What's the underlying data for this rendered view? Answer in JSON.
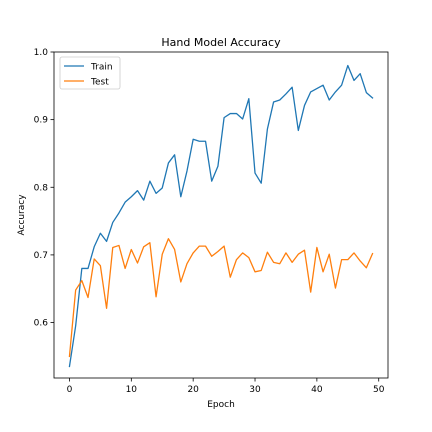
{
  "chart_data": {
    "type": "line",
    "title": "Hand Model Accuracy",
    "xlabel": "Epoch",
    "ylabel": "Accuracy",
    "xlim": [
      -2.5,
      51.5
    ],
    "ylim": [
      0.518,
      1.0
    ],
    "xticks": [
      0,
      10,
      20,
      30,
      40,
      50
    ],
    "yticks": [
      0.6,
      0.7,
      0.8,
      0.9,
      1.0
    ],
    "xtick_labels": [
      "0",
      "10",
      "20",
      "30",
      "40",
      "50"
    ],
    "ytick_labels": [
      "0.6",
      "0.7",
      "0.8",
      "0.9",
      "1.0"
    ],
    "grid": false,
    "legend_position": "top-left",
    "x": [
      0,
      1,
      2,
      3,
      4,
      5,
      6,
      7,
      8,
      9,
      10,
      11,
      12,
      13,
      14,
      15,
      16,
      17,
      18,
      19,
      20,
      21,
      22,
      23,
      24,
      25,
      26,
      27,
      28,
      29,
      30,
      31,
      32,
      33,
      34,
      35,
      36,
      37,
      38,
      39,
      40,
      41,
      42,
      43,
      44,
      45,
      46,
      47,
      48,
      49
    ],
    "series": [
      {
        "name": "Train",
        "color": "#1f77b4",
        "values": [
          0.535,
          0.595,
          0.68,
          0.68,
          0.712,
          0.732,
          0.72,
          0.748,
          0.762,
          0.778,
          0.786,
          0.795,
          0.781,
          0.809,
          0.791,
          0.799,
          0.836,
          0.848,
          0.786,
          0.824,
          0.871,
          0.868,
          0.868,
          0.809,
          0.831,
          0.903,
          0.909,
          0.909,
          0.901,
          0.931,
          0.821,
          0.806,
          0.886,
          0.926,
          0.929,
          0.938,
          0.948,
          0.884,
          0.921,
          0.941,
          0.946,
          0.951,
          0.929,
          0.941,
          0.951,
          0.98,
          0.958,
          0.968,
          0.94,
          0.932
        ]
      },
      {
        "name": "Test",
        "color": "#ff7f0e",
        "values": [
          0.55,
          0.648,
          0.662,
          0.637,
          0.694,
          0.684,
          0.621,
          0.711,
          0.714,
          0.68,
          0.708,
          0.688,
          0.712,
          0.718,
          0.638,
          0.701,
          0.724,
          0.708,
          0.66,
          0.687,
          0.703,
          0.713,
          0.713,
          0.698,
          0.705,
          0.713,
          0.667,
          0.693,
          0.703,
          0.696,
          0.675,
          0.677,
          0.704,
          0.689,
          0.687,
          0.703,
          0.689,
          0.701,
          0.707,
          0.645,
          0.711,
          0.675,
          0.701,
          0.651,
          0.693,
          0.693,
          0.703,
          0.691,
          0.681,
          0.702
        ]
      }
    ]
  }
}
